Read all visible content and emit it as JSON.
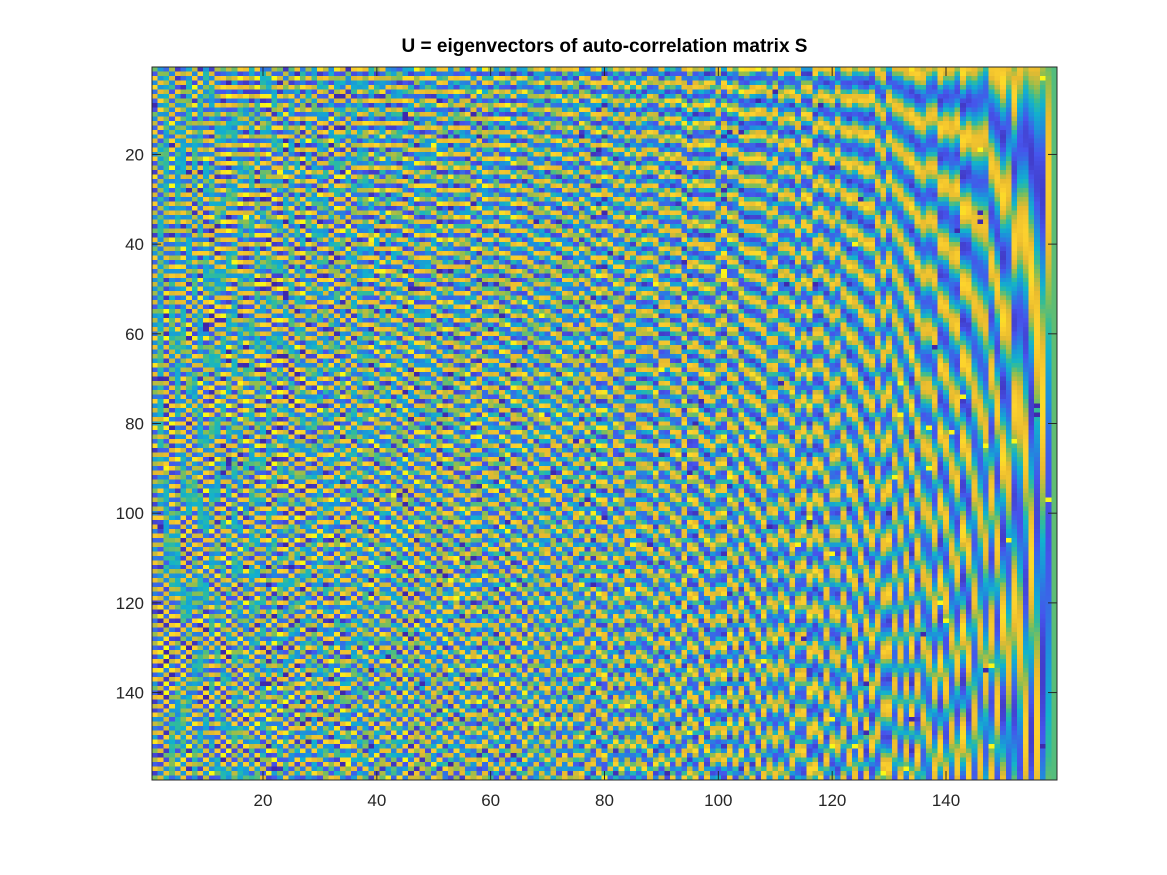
{
  "chart_data": {
    "type": "heatmap",
    "title": "U = eigenvectors of auto-correlation matrix S",
    "xlabel": "",
    "ylabel": "",
    "rows": 159,
    "cols": 159,
    "xlim": [
      0.5,
      159.5
    ],
    "ylim": [
      0.5,
      159.5
    ],
    "y_direction": "reverse",
    "x_ticks": [
      20,
      40,
      60,
      80,
      100,
      120,
      140
    ],
    "y_ticks": [
      20,
      40,
      60,
      80,
      100,
      120,
      140
    ],
    "x_tick_labels": [
      "20",
      "40",
      "60",
      "80",
      "100",
      "120",
      "140"
    ],
    "y_tick_labels": [
      "20",
      "40",
      "60",
      "80",
      "100",
      "120",
      "140"
    ],
    "colormap": "parula",
    "color_range": [
      -0.35,
      0.35
    ],
    "grid": false,
    "colors": {
      "low": "#3e26a8",
      "mid_low": "#1e8fdc",
      "mid": "#33b7a0",
      "mid_high": "#e8ba2f",
      "high": "#f9fb15"
    }
  }
}
